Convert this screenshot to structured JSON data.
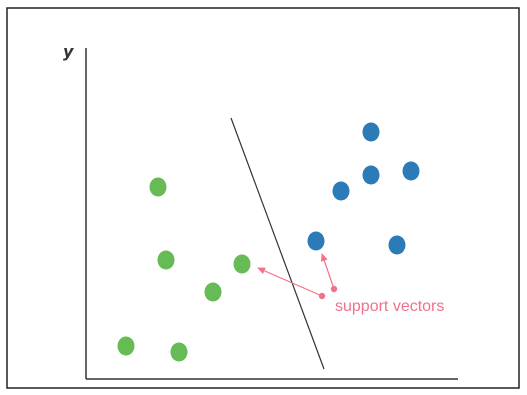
{
  "axes": {
    "y_label": "y",
    "axis_color": "#333333"
  },
  "classes": {
    "green": {
      "color": "#66bb55",
      "points": [
        [
          158,
          187
        ],
        [
          166,
          260
        ],
        [
          242,
          264
        ],
        [
          213,
          292
        ],
        [
          126,
          346
        ],
        [
          179,
          352
        ]
      ]
    },
    "blue": {
      "color": "#2a7bb6",
      "points": [
        [
          371,
          132
        ],
        [
          341,
          191
        ],
        [
          371,
          175
        ],
        [
          411,
          171
        ],
        [
          316,
          241
        ],
        [
          397,
          245
        ]
      ]
    }
  },
  "separator": {
    "color": "#333333"
  },
  "annotation": {
    "label": "support vectors",
    "color": "#f0728a"
  },
  "frame_color": "#222222"
}
